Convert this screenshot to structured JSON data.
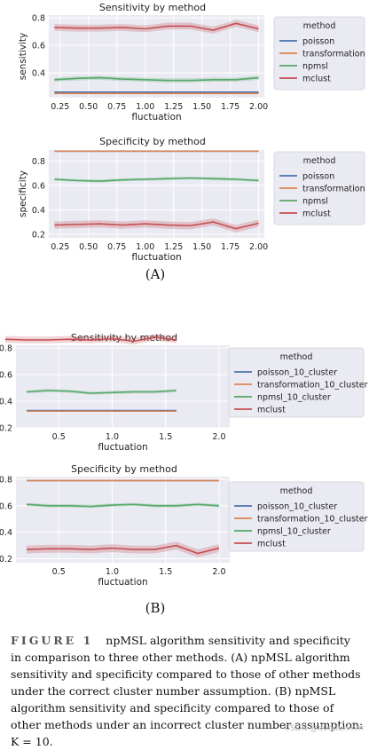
{
  "panel_labels": [
    "(A)",
    "(B)"
  ],
  "caption": {
    "label": "FIGURE 1",
    "text": "npMSL algorithm sensitivity and specificity in comparison to three other methods. (A) npMSL algorithm sensitivity and specificity compared to those of other methods under the correct cluster number assumption. (B) npMSL algorithm sensitivity and specificity compared to those of other methods under an incorrect cluster number assumption: K = 10."
  },
  "watermark": "CSDN @dundunmm",
  "colors": {
    "poisson": "#4c72b0",
    "transformation": "#dd8452",
    "npmsl": "#55a868",
    "mclust": "#c44e52",
    "plot_bg": "#eaeaf2",
    "grid": "#ffffff"
  },
  "chart_data": [
    {
      "type": "line",
      "title": "Sensitivity by method",
      "xlabel": "fluctuation",
      "ylabel": "sensitivity",
      "xlim": [
        0.15,
        2.05
      ],
      "ylim": [
        0.22,
        0.82
      ],
      "xticks": [
        "0.25",
        "0.50",
        "0.75",
        "1.00",
        "1.25",
        "1.50",
        "1.75",
        "2.00"
      ],
      "xtick_values": [
        0.25,
        0.5,
        0.75,
        1.0,
        1.25,
        1.5,
        1.75,
        2.0
      ],
      "yticks": [
        "0.4",
        "0.6",
        "0.8"
      ],
      "ytick_values": [
        0.4,
        0.6,
        0.8
      ],
      "legend_title": "method",
      "legend": [
        "poisson",
        "transformation",
        "npmsl",
        "mclust"
      ],
      "x": [
        0.2,
        0.4,
        0.6,
        0.8,
        1.0,
        1.2,
        1.4,
        1.6,
        1.8,
        2.0
      ],
      "series": [
        {
          "name": "poisson",
          "color_key": "poisson",
          "values": [
            0.26,
            0.26,
            0.26,
            0.26,
            0.26,
            0.26,
            0.26,
            0.26,
            0.26,
            0.26
          ],
          "band": 0
        },
        {
          "name": "transformation",
          "color_key": "transformation",
          "values": [
            0.25,
            0.25,
            0.25,
            0.25,
            0.25,
            0.25,
            0.25,
            0.25,
            0.25,
            0.25
          ],
          "band": 0
        },
        {
          "name": "npmsl",
          "color_key": "npmsl",
          "values": [
            0.35,
            0.36,
            0.365,
            0.355,
            0.35,
            0.345,
            0.345,
            0.35,
            0.35,
            0.365
          ],
          "band": 0.015
        },
        {
          "name": "mclust",
          "color_key": "mclust",
          "values": [
            0.73,
            0.725,
            0.725,
            0.73,
            0.72,
            0.74,
            0.74,
            0.71,
            0.76,
            0.72
          ],
          "band": 0.025
        }
      ]
    },
    {
      "type": "line",
      "title": "Specificity by method",
      "xlabel": "fluctuation",
      "ylabel": "specificity",
      "xlim": [
        0.15,
        2.05
      ],
      "ylim": [
        0.17,
        0.89
      ],
      "xticks": [
        "0.25",
        "0.50",
        "0.75",
        "1.00",
        "1.25",
        "1.50",
        "1.75",
        "2.00"
      ],
      "xtick_values": [
        0.25,
        0.5,
        0.75,
        1.0,
        1.25,
        1.5,
        1.75,
        2.0
      ],
      "yticks": [
        "0.2",
        "0.4",
        "0.6",
        "0.8"
      ],
      "ytick_values": [
        0.2,
        0.4,
        0.6,
        0.8
      ],
      "legend_title": "method",
      "legend": [
        "poisson",
        "transformation",
        "npmsl",
        "mclust"
      ],
      "x": [
        0.2,
        0.4,
        0.6,
        0.8,
        1.0,
        1.2,
        1.4,
        1.6,
        1.8,
        2.0
      ],
      "series": [
        {
          "name": "poisson",
          "color_key": "poisson",
          "values": [
            0.88,
            0.88,
            0.88,
            0.88,
            0.88,
            0.88,
            0.88,
            0.88,
            0.88,
            0.88
          ],
          "band": 0
        },
        {
          "name": "transformation",
          "color_key": "transformation",
          "values": [
            0.88,
            0.88,
            0.88,
            0.88,
            0.88,
            0.88,
            0.88,
            0.88,
            0.88,
            0.88
          ],
          "band": 0
        },
        {
          "name": "npmsl",
          "color_key": "npmsl",
          "values": [
            0.65,
            0.64,
            0.635,
            0.645,
            0.65,
            0.655,
            0.66,
            0.655,
            0.65,
            0.64
          ],
          "band": 0.012
        },
        {
          "name": "mclust",
          "color_key": "mclust",
          "values": [
            0.275,
            0.28,
            0.285,
            0.275,
            0.285,
            0.275,
            0.27,
            0.3,
            0.245,
            0.29
          ],
          "band": 0.03
        }
      ]
    },
    {
      "type": "line",
      "title": "Sensitivity by method",
      "xlabel": "fluctuation",
      "ylabel": "sensitivity",
      "xlim": [
        0.1,
        2.1
      ],
      "ylim": [
        0.2,
        0.82
      ],
      "xticks": [
        "0.5",
        "1.0",
        "1.5",
        "2.0"
      ],
      "xtick_values": [
        0.5,
        1.0,
        1.5,
        2.0
      ],
      "yticks": [
        "0.2",
        "0.4",
        "0.6",
        "0.8"
      ],
      "ytick_values": [
        0.2,
        0.4,
        0.6,
        0.8
      ],
      "legend_title": "method",
      "legend": [
        "poisson_10_cluster",
        "transformation_10_cluster",
        "npmsl_10_cluster",
        "mclust"
      ],
      "x": [
        0.2,
        0.4,
        0.6,
        0.8,
        1.0,
        1.2,
        1.4,
        1.6
      ],
      "series": [
        {
          "name": "poisson_10_cluster",
          "color_key": "poisson",
          "values": [
            0.33,
            0.33,
            0.33,
            0.33,
            0.33,
            0.33,
            0.33,
            0.33
          ],
          "band": 0
        },
        {
          "name": "transformation_10_cluster",
          "color_key": "transformation",
          "values": [
            0.325,
            0.325,
            0.325,
            0.325,
            0.325,
            0.325,
            0.325,
            0.325
          ],
          "band": 0
        },
        {
          "name": "npmsl_10_cluster",
          "color_key": "npmsl",
          "values": [
            0.47,
            0.48,
            0.475,
            0.46,
            0.465,
            0.47,
            0.47,
            0.48
          ],
          "band": 0.012
        },
        {
          "name": "mclust",
          "color_key": "mclust",
          "x": [
            0.0,
            0.2,
            0.4,
            0.6,
            0.8,
            1.0,
            1.2,
            1.4,
            1.6
          ],
          "values": [
            0.865,
            0.86,
            0.86,
            0.865,
            0.86,
            0.87,
            0.85,
            0.88,
            0.86
          ],
          "band": 0.025
        }
      ]
    },
    {
      "type": "line",
      "title": "Specificity by method",
      "xlabel": "fluctuation",
      "ylabel": "specificity",
      "xlim": [
        0.1,
        2.1
      ],
      "ylim": [
        0.17,
        0.82
      ],
      "xticks": [
        "0.5",
        "1.0",
        "1.5",
        "2.0"
      ],
      "xtick_values": [
        0.5,
        1.0,
        1.5,
        2.0
      ],
      "yticks": [
        "0.2",
        "0.4",
        "0.6",
        "0.8"
      ],
      "ytick_values": [
        0.2,
        0.4,
        0.6,
        0.8
      ],
      "legend_title": "method",
      "legend": [
        "poisson_10_cluster",
        "transformation_10_cluster",
        "npmsl_10_cluster",
        "mclust"
      ],
      "x": [
        0.2,
        0.4,
        0.6,
        0.8,
        1.0,
        1.2,
        1.4,
        1.6,
        1.8,
        2.0
      ],
      "series": [
        {
          "name": "poisson_10_cluster",
          "color_key": "poisson",
          "values": [
            0.79,
            0.79,
            0.79,
            0.79,
            0.79,
            0.79,
            0.79,
            0.79,
            0.79,
            0.79
          ],
          "band": 0
        },
        {
          "name": "transformation_10_cluster",
          "color_key": "transformation",
          "values": [
            0.79,
            0.79,
            0.79,
            0.79,
            0.79,
            0.79,
            0.79,
            0.79,
            0.79,
            0.79
          ],
          "band": 0
        },
        {
          "name": "npmsl_10_cluster",
          "color_key": "npmsl",
          "values": [
            0.61,
            0.6,
            0.6,
            0.595,
            0.605,
            0.61,
            0.6,
            0.6,
            0.61,
            0.6
          ],
          "band": 0.012
        },
        {
          "name": "mclust",
          "color_key": "mclust",
          "values": [
            0.27,
            0.275,
            0.275,
            0.27,
            0.28,
            0.27,
            0.27,
            0.3,
            0.24,
            0.28
          ],
          "band": 0.03
        }
      ]
    }
  ]
}
